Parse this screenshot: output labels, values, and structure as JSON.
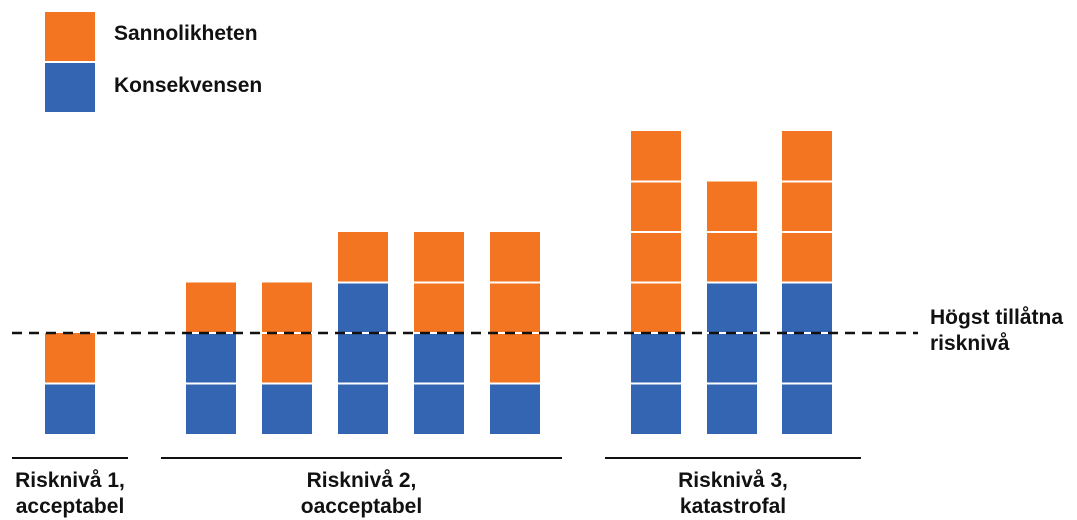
{
  "colors": {
    "sannolikheten": "#f47521",
    "konsekvensen": "#3465b2",
    "unit_divider": "#ffffff",
    "line": "#111111"
  },
  "legend": [
    {
      "label": "Sannolikheten",
      "color": "#f47521"
    },
    {
      "label": "Konsekvensen",
      "color": "#3465b2"
    }
  ],
  "threshold": {
    "label_line1": "Högst tillåtna",
    "label_line2": "risknivå",
    "value": 2
  },
  "groups": [
    {
      "line1": "Risknivå 1,",
      "line2": "acceptabel"
    },
    {
      "line1": "Risknivå 2,",
      "line2": "oacceptabel"
    },
    {
      "line1": "Risknivå 3,",
      "line2": "katastrofal"
    }
  ],
  "chart_data": {
    "type": "bar",
    "stacked": true,
    "series": [
      {
        "name": "Konsekvensen",
        "values": [
          1,
          2,
          1,
          3,
          2,
          1,
          2,
          3,
          3
        ]
      },
      {
        "name": "Sannolikheten",
        "values": [
          1,
          1,
          2,
          1,
          2,
          3,
          4,
          2,
          3
        ]
      }
    ],
    "bar_groups": [
      0,
      1,
      1,
      1,
      1,
      1,
      2,
      2,
      2
    ],
    "ylim": [
      0,
      6
    ],
    "grid": false,
    "legend_position": "top-left"
  }
}
